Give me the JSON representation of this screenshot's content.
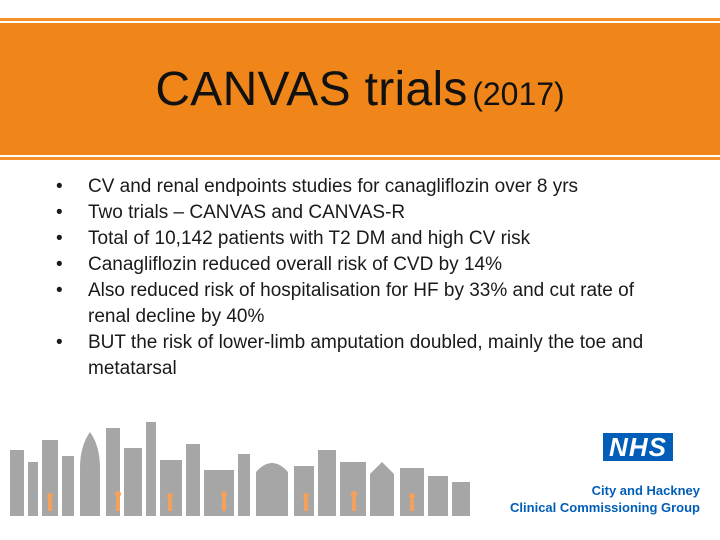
{
  "slide": {
    "title": "CANVAS trials",
    "title_year": "(2017)",
    "bullets": [
      "CV and renal endpoints studies for canagliflozin over 8 yrs",
      "Two trials – CANVAS and CANVAS-R",
      "Total of 10,142 patients with T2 DM and high CV risk",
      "Canagliflozin reduced overall risk of CVD by 14%",
      "Also reduced risk of hospitalisation for HF by 33% and cut rate of renal decline by 40%",
      "BUT the risk of lower-limb amputation doubled, mainly the toe and metatarsal"
    ]
  },
  "footer": {
    "logo_text": "NHS",
    "org_line1": "City and Hackney",
    "org_line2": "Clinical Commissioning Group"
  },
  "colors": {
    "title_band": "#f0861a",
    "nhs_blue": "#005eb8",
    "skyline_grey": "#a6a6a6",
    "people_orange": "#f5a15a"
  }
}
